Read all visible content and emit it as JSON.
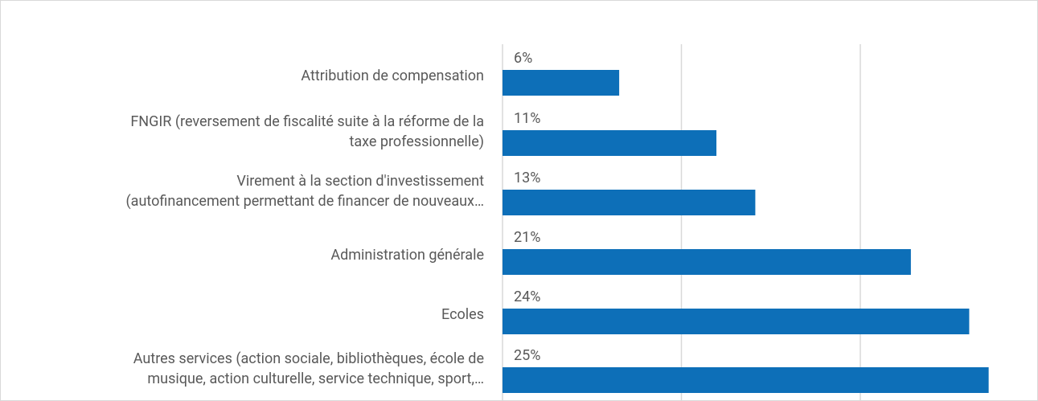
{
  "chart_data": {
    "type": "barh",
    "categories": [
      [
        "Attribution de compensation"
      ],
      [
        "FNGIR (reversement de fiscalité suite à la réforme de la",
        "taxe professionnelle)"
      ],
      [
        "Virement à la section d'investissement",
        "(autofinancement permettant de financer de nouveaux…"
      ],
      [
        "Administration générale"
      ],
      [
        "Ecoles"
      ],
      [
        "Autres services (action sociale, bibliothèques, école de",
        "musique, action culturelle, service technique, sport,…"
      ]
    ],
    "values": [
      6,
      11,
      13,
      21,
      24,
      25
    ],
    "value_labels": [
      "6%",
      "11%",
      "13%",
      "21%",
      "24%",
      "25%"
    ],
    "color": "#0d6fb8",
    "xlim": [
      0,
      27
    ],
    "xticks": [
      0,
      9.2,
      18.4
    ],
    "grid": true
  }
}
